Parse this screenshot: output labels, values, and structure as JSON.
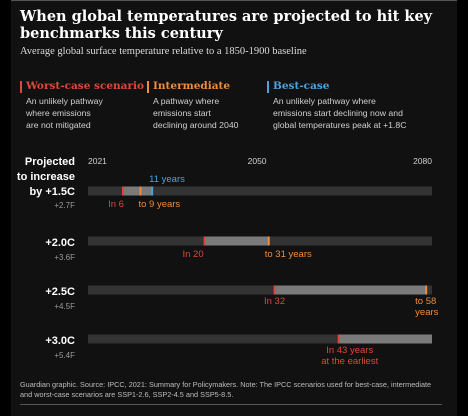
{
  "title": "When global temperatures are projected to hit key\nbenchmarks  this century",
  "subtitle": "Average global surface temperature relative to a 1850-1900 baseline",
  "legend": [
    {
      "label": "Worst-case scenario",
      "color": "#e0463a",
      "description": "An unlikely pathway\nwhere emissions\nare not mitigated"
    },
    {
      "label": "Intermediate",
      "color": "#f08c3a",
      "description": "A pathway where\nemissions start\ndeclining around 2040"
    },
    {
      "label": "Best-case",
      "color": "#4aa3df",
      "description": "An unlikely pathway where\nemissions start declining now and\nglobal temperatures peak at +1.8C"
    }
  ],
  "row_header": [
    "Projected",
    "to increase",
    "by +1.5C"
  ],
  "footnote": "Guardian graphic. Source: IPCC, 2021: Summary for Policymakers. Note: The IPCC scenarios used for best-case, intermediate and worst-case scenarios are SSP1-2.6, SSP2-4.5 and SSP5-8.5.",
  "colors": {
    "track": "#333333",
    "range": "#7a7a7a",
    "worst": "#e0463a",
    "intermediate": "#f08c3a",
    "best": "#4aa3df"
  },
  "chart_data": {
    "type": "range",
    "x_axis": {
      "min": 2021,
      "max": 2080,
      "ticks": [
        2021,
        2050,
        2080
      ]
    },
    "rows": [
      {
        "label": "+1.5C",
        "sublabel": "+2.7F",
        "worst_year": 2027,
        "intermediate_year": 2030,
        "best_year": 2032,
        "worst_text": "In 6",
        "intermediate_text": "to 9 years",
        "best_text": "11 years"
      },
      {
        "label": "+2.0C",
        "sublabel": "+3.6F",
        "worst_year": 2041,
        "intermediate_year": 2052,
        "best_year": null,
        "worst_text": "In 20",
        "intermediate_text": "to 31 years",
        "best_text": ""
      },
      {
        "label": "+2.5C",
        "sublabel": "+4.5F",
        "worst_year": 2053,
        "intermediate_year": 2079,
        "best_year": null,
        "worst_text": "In 32",
        "intermediate_text": "to 58\nyears",
        "best_text": ""
      },
      {
        "label": "+3.0C",
        "sublabel": "+5.4F",
        "worst_year": 2064,
        "intermediate_year": null,
        "best_year": null,
        "worst_text": "In 43 years\nat the earliest",
        "intermediate_text": "",
        "best_text": ""
      }
    ]
  }
}
